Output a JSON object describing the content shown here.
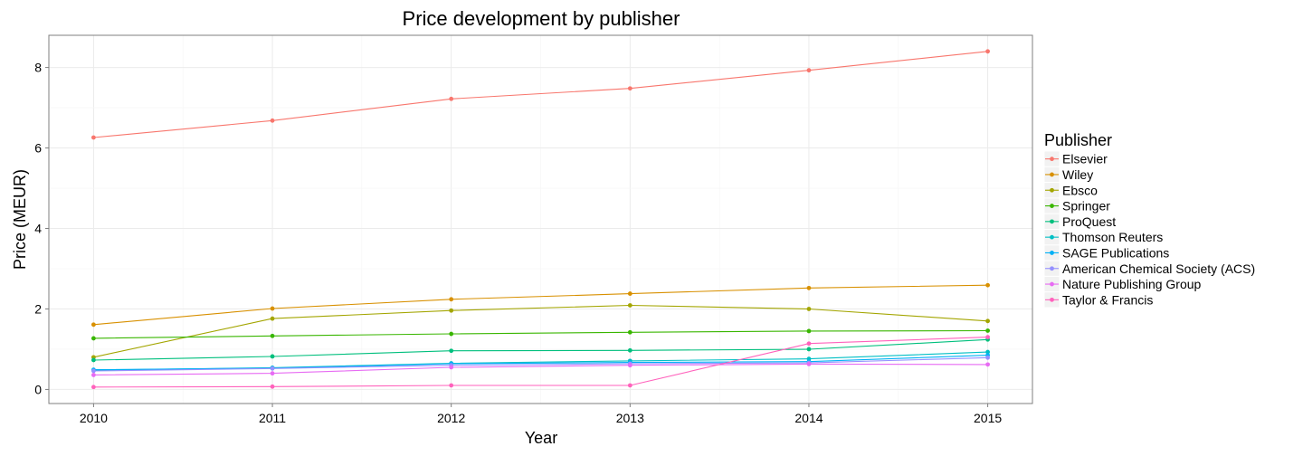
{
  "chart_data": {
    "type": "line",
    "title": "Price development by publisher",
    "xlabel": "Year",
    "ylabel": "Price (MEUR)",
    "x": [
      2010,
      2011,
      2012,
      2013,
      2014,
      2015
    ],
    "xlim": [
      2009.75,
      2015.25
    ],
    "ylim": [
      -0.35,
      8.8
    ],
    "yticks": [
      0,
      2,
      4,
      6,
      8
    ],
    "grid": true,
    "legend_title": "Publisher",
    "legend_position": "right",
    "series": [
      {
        "name": "Elsevier",
        "color": "#F8766D",
        "values": [
          6.26,
          6.68,
          7.22,
          7.48,
          7.93,
          8.4
        ]
      },
      {
        "name": "Wiley",
        "color": "#D89000",
        "values": [
          1.61,
          2.01,
          2.24,
          2.38,
          2.52,
          2.59
        ]
      },
      {
        "name": "Ebsco",
        "color": "#A3A500",
        "values": [
          0.8,
          1.76,
          1.96,
          2.09,
          2.0,
          1.7
        ]
      },
      {
        "name": "Springer",
        "color": "#39B600",
        "values": [
          1.27,
          1.33,
          1.38,
          1.42,
          1.45,
          1.46
        ]
      },
      {
        "name": "ProQuest",
        "color": "#00BF7D",
        "values": [
          0.73,
          0.82,
          0.96,
          0.97,
          1.0,
          1.24
        ]
      },
      {
        "name": "Thomson Reuters",
        "color": "#00BFC4",
        "values": [
          0.48,
          0.54,
          0.65,
          0.71,
          0.76,
          0.93
        ]
      },
      {
        "name": "SAGE Publications",
        "color": "#00B0F6",
        "values": [
          0.49,
          0.53,
          0.64,
          0.67,
          0.69,
          0.85
        ]
      },
      {
        "name": "American Chemical Society (ACS)",
        "color": "#9590FF",
        "values": [
          0.46,
          0.52,
          0.6,
          0.64,
          0.66,
          0.79
        ]
      },
      {
        "name": "Nature Publishing Group",
        "color": "#E76BF3",
        "values": [
          0.36,
          0.4,
          0.55,
          0.6,
          0.63,
          0.62
        ]
      },
      {
        "name": "Taylor & Francis",
        "color": "#FF62BC",
        "values": [
          0.06,
          0.07,
          0.1,
          0.1,
          1.14,
          1.3
        ]
      }
    ]
  }
}
